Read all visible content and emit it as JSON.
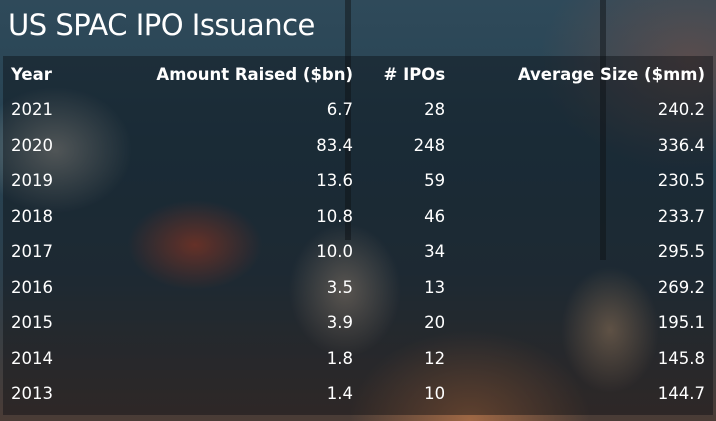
{
  "title": "US SPAC IPO Issuance",
  "chart_data": {
    "type": "table",
    "columns": [
      "Year",
      "Amount Raised ($bn)",
      "# IPOs",
      "Average Size ($mm)"
    ],
    "rows": [
      {
        "year": "2021",
        "amount": "6.7",
        "ipos": "28",
        "avg": "240.2"
      },
      {
        "year": "2020",
        "amount": "83.4",
        "ipos": "248",
        "avg": "336.4"
      },
      {
        "year": "2019",
        "amount": "13.6",
        "ipos": "59",
        "avg": "230.5"
      },
      {
        "year": "2018",
        "amount": "10.8",
        "ipos": "46",
        "avg": "233.7"
      },
      {
        "year": "2017",
        "amount": "10.0",
        "ipos": "34",
        "avg": "295.5"
      },
      {
        "year": "2016",
        "amount": "3.5",
        "ipos": "13",
        "avg": "269.2"
      },
      {
        "year": "2015",
        "amount": "3.9",
        "ipos": "20",
        "avg": "195.1"
      },
      {
        "year": "2014",
        "amount": "1.8",
        "ipos": "12",
        "avg": "145.8"
      },
      {
        "year": "2013",
        "amount": "1.4",
        "ipos": "10",
        "avg": "144.7"
      }
    ]
  }
}
